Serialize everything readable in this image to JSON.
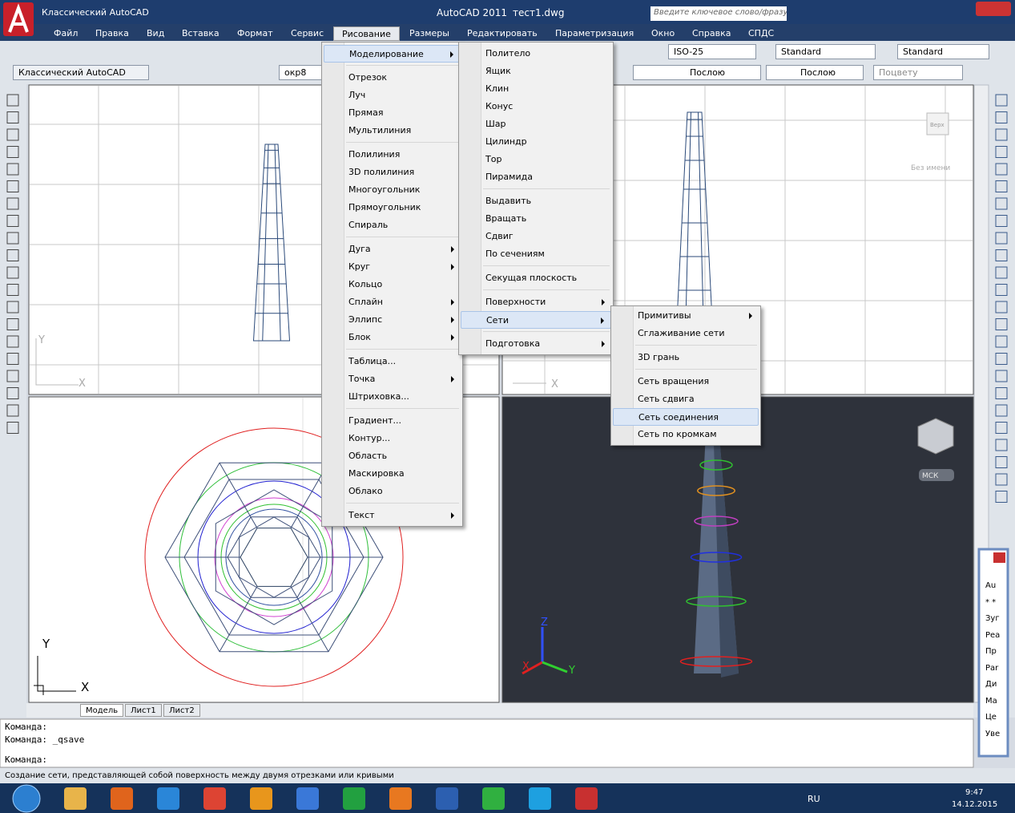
{
  "title_bar": {
    "workspace": "Классический AutoCAD",
    "app": "AutoCAD 2011",
    "file": "тест1.dwg",
    "search": "Введите ключевое слово/фразу"
  },
  "menu_bar": [
    {
      "label": "Файл"
    },
    {
      "label": "Правка"
    },
    {
      "label": "Вид"
    },
    {
      "label": "Вставка"
    },
    {
      "label": "Формат"
    },
    {
      "label": "Сервис"
    },
    {
      "label": "Рисование",
      "open": true
    },
    {
      "label": "Размеры"
    },
    {
      "label": "Редактировать"
    },
    {
      "label": "Параметризация"
    },
    {
      "label": "Окно"
    },
    {
      "label": "Справка"
    },
    {
      "label": "СПДС"
    }
  ],
  "toolbar": {
    "dimstyle": "ISO-25",
    "textstyle": "Standard",
    "tablestyle": "Standard",
    "workspace": "Классический AutoCAD",
    "layer": "окр8",
    "linetype": "Послою",
    "lineweight": "Послою",
    "plotstyle": "Поцвету"
  },
  "draw_menu": {
    "groups": [
      [
        {
          "label": "Моделирование",
          "arrow": true,
          "active": true
        }
      ],
      [
        {
          "label": "Отрезок"
        },
        {
          "label": "Луч"
        },
        {
          "label": "Прямая"
        },
        {
          "label": "Мультилиния"
        }
      ],
      [
        {
          "label": "Полилиния"
        },
        {
          "label": "3D полилиния"
        },
        {
          "label": "Многоугольник"
        },
        {
          "label": "Прямоугольник"
        },
        {
          "label": "Спираль"
        }
      ],
      [
        {
          "label": "Дуга",
          "arrow": true
        },
        {
          "label": "Круг",
          "arrow": true
        },
        {
          "label": "Кольцо"
        },
        {
          "label": "Сплайн",
          "arrow": true
        },
        {
          "label": "Эллипс",
          "arrow": true
        },
        {
          "label": "Блок",
          "arrow": true
        }
      ],
      [
        {
          "label": "Таблица..."
        },
        {
          "label": "Точка",
          "arrow": true
        },
        {
          "label": "Штриховка..."
        }
      ],
      [
        {
          "label": "Градиент..."
        },
        {
          "label": "Контур..."
        },
        {
          "label": "Область"
        },
        {
          "label": "Маскировка"
        },
        {
          "label": "Облако"
        }
      ],
      [
        {
          "label": "Текст",
          "arrow": true
        }
      ]
    ]
  },
  "modeling_menu": {
    "groups": [
      [
        {
          "label": "Политело"
        },
        {
          "label": "Ящик"
        },
        {
          "label": "Клин"
        },
        {
          "label": "Конус"
        },
        {
          "label": "Шар"
        },
        {
          "label": "Цилиндр"
        },
        {
          "label": "Тор"
        },
        {
          "label": "Пирамида"
        }
      ],
      [
        {
          "label": "Выдавить"
        },
        {
          "label": "Вращать"
        },
        {
          "label": "Сдвиг"
        },
        {
          "label": "По сечениям"
        }
      ],
      [
        {
          "label": "Секущая плоскость"
        }
      ],
      [
        {
          "label": "Поверхности",
          "arrow": true
        },
        {
          "label": "Сети",
          "arrow": true,
          "active": true
        }
      ],
      [
        {
          "label": "Подготовка",
          "arrow": true
        }
      ]
    ]
  },
  "mesh_menu": {
    "groups": [
      [
        {
          "label": "Примитивы",
          "arrow": true
        },
        {
          "label": "Сглаживание сети"
        }
      ],
      [
        {
          "label": "3D грань"
        }
      ],
      [
        {
          "label": "Сеть вращения"
        },
        {
          "label": "Сеть сдвига"
        },
        {
          "label": "Сеть соединения",
          "active": true
        },
        {
          "label": "Сеть по кромкам"
        }
      ]
    ]
  },
  "viewports": {
    "view_cube": "Верх",
    "named_view": "Без имени",
    "ucs": "МСК",
    "axis_x": "X",
    "axis_y": "Y",
    "axis_z": "Z"
  },
  "layout_tabs": [
    "Модель",
    "Лист1",
    "Лист2"
  ],
  "command_lines": [
    "Команда:",
    "Команда:  _qsave"
  ],
  "command_prompt": "Команда:",
  "status_text": "Создание сети, представляющей собой поверхность между двумя отрезками или кривыми",
  "palette_lines": [
    "Au",
    "* *",
    "Зуг",
    "Реа",
    "Пр",
    "Раr",
    "Ди",
    "Ма",
    "Це",
    "Уве"
  ],
  "taskbar": {
    "language": "RU",
    "time": "9:47",
    "date": "14.12.2015"
  }
}
